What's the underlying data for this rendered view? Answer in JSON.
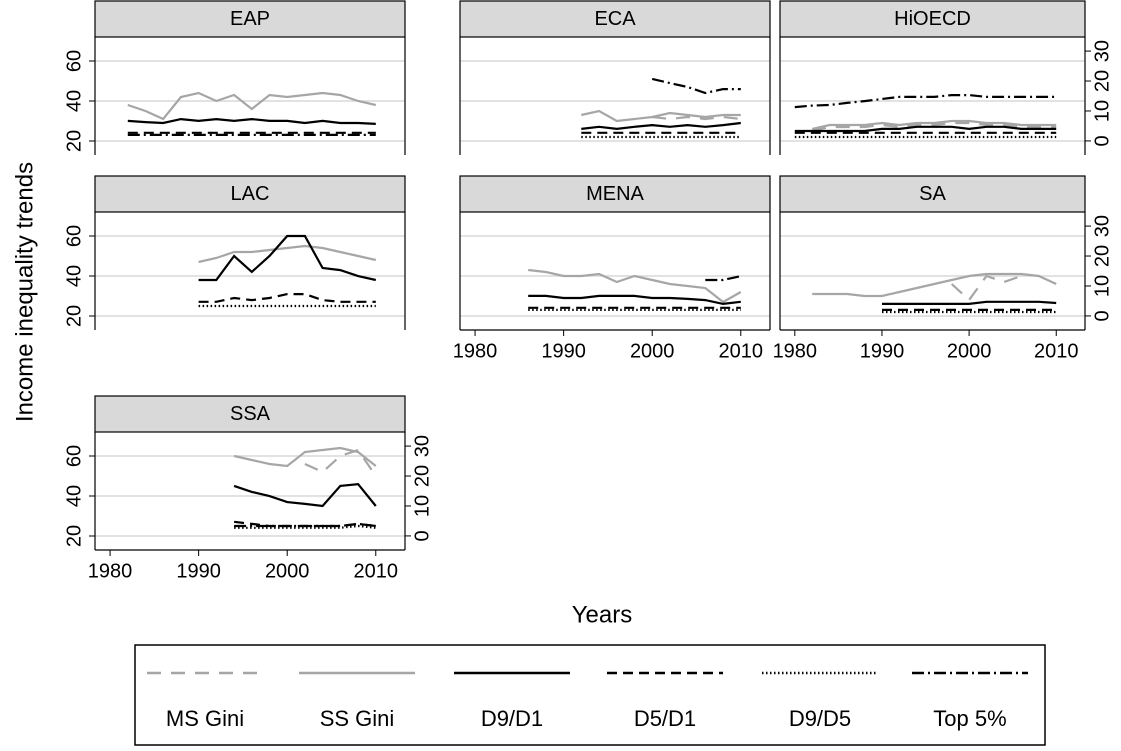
{
  "chart_data": {
    "type": "line",
    "y_label": "Income inequality trends",
    "x_label": "Years",
    "x": [
      1980,
      1982,
      1984,
      1986,
      1988,
      1990,
      1992,
      1994,
      1996,
      1998,
      2000,
      2002,
      2004,
      2006,
      2008,
      2010
    ],
    "xlim": [
      1978.3,
      2013.3
    ],
    "xticks": [
      1980,
      1990,
      2000,
      2010
    ],
    "ylim": [
      13,
      72
    ],
    "yticks": [
      20,
      40,
      60
    ],
    "y2lim": [
      -4.7,
      34.7
    ],
    "y2ticks": [
      0,
      10,
      20,
      30
    ],
    "grid": true,
    "series": [
      {
        "name": "MS Gini",
        "color": "#a6a6a6",
        "dash": "14 10"
      },
      {
        "name": "SS Gini",
        "color": "#a6a6a6",
        "dash": "none"
      },
      {
        "name": "D9/D1",
        "color": "#000000",
        "dash": "none",
        "axis": "y2"
      },
      {
        "name": "D5/D1",
        "color": "#000000",
        "dash": "10 6",
        "axis": "y2"
      },
      {
        "name": "D9/D5",
        "color": "#000000",
        "dash": "1.5 2.5",
        "axis": "y2"
      },
      {
        "name": "Top 5%",
        "color": "#000000",
        "dash": "12 4 2 4",
        "axis": "y2"
      }
    ],
    "facets": [
      {
        "title": "EAP",
        "left_axis": true,
        "right_axis": false,
        "x_axis": false,
        "values": [
          null,
          [
            null,
            38,
            35,
            31,
            42,
            44,
            40,
            43,
            36,
            43,
            42,
            43,
            44,
            43,
            40,
            38
          ],
          [
            null,
            6.7,
            6.3,
            6,
            7.3,
            6.7,
            7.3,
            6.7,
            7.3,
            6.7,
            6.7,
            6,
            6.7,
            6,
            6,
            5.7
          ],
          [
            null,
            2.7,
            2.7,
            2.7,
            2.7,
            2.7,
            2.7,
            2.7,
            2.7,
            2.7,
            2.7,
            2.7,
            2.7,
            2.7,
            2.7,
            2.7
          ],
          null,
          [
            null,
            2,
            2,
            2,
            2,
            2,
            2,
            2,
            2,
            2,
            2,
            2,
            2,
            2,
            2,
            2
          ]
        ]
      },
      {
        "title": "ECA",
        "left_axis": false,
        "right_axis": false,
        "x_axis": false,
        "values": [
          [
            null,
            null,
            null,
            null,
            null,
            null,
            null,
            null,
            null,
            null,
            32,
            31,
            32,
            31,
            32,
            31
          ],
          [
            null,
            null,
            null,
            null,
            null,
            null,
            33,
            35,
            30,
            31,
            32,
            34,
            33,
            32,
            33,
            33
          ],
          [
            null,
            null,
            null,
            null,
            null,
            null,
            4,
            4.7,
            4,
            4.7,
            5.3,
            4.7,
            5.3,
            4.7,
            5.3,
            6
          ],
          [
            null,
            null,
            null,
            null,
            null,
            null,
            2.7,
            2.7,
            2.7,
            2.7,
            2.7,
            2.7,
            2.7,
            2.7,
            2.7,
            2.7
          ],
          [
            null,
            null,
            null,
            null,
            null,
            null,
            1.3,
            1.3,
            1.3,
            1.3,
            1.3,
            1.3,
            1.3,
            1.3,
            1.3,
            1.3
          ],
          [
            null,
            null,
            null,
            null,
            null,
            null,
            null,
            null,
            null,
            null,
            20.7,
            19.3,
            18,
            16,
            17.3,
            17.3
          ]
        ]
      },
      {
        "title": "HiOECD",
        "left_axis": false,
        "right_axis": true,
        "x_axis": false,
        "values": [
          [
            null,
            25,
            27,
            27,
            27,
            28,
            27,
            28,
            28,
            29,
            29,
            28,
            28,
            27,
            27,
            27
          ],
          [
            null,
            26,
            28,
            28,
            28,
            29,
            28,
            29,
            29,
            30,
            30,
            29,
            29,
            28,
            28,
            28
          ],
          [
            3.3,
            3.3,
            3.3,
            3.3,
            3.3,
            4,
            4,
            4.7,
            4.7,
            4.7,
            4,
            4.7,
            4.7,
            4,
            4,
            4
          ],
          [
            2.7,
            2.7,
            2.7,
            2.7,
            2.7,
            2.7,
            2.7,
            2.7,
            2.7,
            2.7,
            2.7,
            2.7,
            2.7,
            2.7,
            2.7,
            2.7
          ],
          [
            1.3,
            1.3,
            1.3,
            1.3,
            1.3,
            1.3,
            1.3,
            1.3,
            1.3,
            1.3,
            1.3,
            1.3,
            1.3,
            1.3,
            1.3,
            1.3
          ],
          [
            11.3,
            11.8,
            12,
            12.7,
            13.3,
            14,
            14.7,
            14.7,
            14.7,
            15.3,
            15.3,
            14.7,
            14.7,
            14.7,
            14.7,
            14.7
          ]
        ]
      },
      {
        "title": "LAC",
        "left_axis": true,
        "right_axis": false,
        "x_axis": false,
        "values": [
          null,
          [
            null,
            null,
            null,
            null,
            null,
            47,
            49,
            52,
            52,
            53,
            54,
            55,
            54,
            52,
            50,
            48
          ],
          [
            null,
            null,
            null,
            null,
            null,
            12,
            12,
            20,
            14.7,
            20,
            26.7,
            26.7,
            16,
            15.3,
            13.3,
            12
          ],
          [
            null,
            null,
            null,
            null,
            null,
            4.7,
            4.7,
            6,
            5.3,
            6,
            7.3,
            7.3,
            5.3,
            4.7,
            4.7,
            4.7
          ],
          [
            null,
            null,
            null,
            null,
            null,
            3.3,
            3.3,
            3.3,
            3.3,
            3.3,
            3.3,
            3.3,
            3.3,
            3.3,
            3.3,
            3.3
          ],
          null
        ]
      },
      {
        "title": "MENA",
        "left_axis": false,
        "right_axis": false,
        "x_axis": true,
        "values": [
          null,
          [
            null,
            null,
            null,
            43,
            42,
            40,
            40,
            41,
            37,
            40,
            38,
            36,
            35,
            34,
            27,
            32
          ],
          [
            null,
            null,
            null,
            6.7,
            6.7,
            6,
            6,
            6.7,
            6.7,
            6.7,
            6,
            6,
            5.7,
            5.3,
            4,
            4.7
          ],
          [
            null,
            null,
            null,
            2.7,
            2.7,
            2.7,
            2.7,
            2.7,
            2.7,
            2.7,
            2.7,
            2.7,
            2.7,
            2.7,
            2.7,
            2.7
          ],
          [
            null,
            null,
            null,
            2,
            2,
            2,
            2,
            2,
            2,
            2,
            2,
            2,
            2,
            2,
            2,
            2
          ],
          [
            null,
            null,
            null,
            null,
            null,
            null,
            null,
            null,
            null,
            null,
            null,
            null,
            null,
            12,
            12,
            13.3
          ]
        ]
      },
      {
        "title": "SA",
        "left_axis": false,
        "right_axis": true,
        "x_axis": true,
        "values": [
          [
            null,
            null,
            null,
            null,
            null,
            null,
            null,
            null,
            null,
            36,
            28,
            40,
            37,
            40,
            null,
            null
          ],
          [
            null,
            31,
            31,
            31,
            30,
            30,
            32,
            34,
            36,
            38,
            40,
            41,
            41,
            41,
            40,
            36
          ],
          [
            null,
            null,
            null,
            null,
            null,
            4,
            4,
            4,
            4,
            4,
            4,
            4.7,
            4.7,
            4.7,
            4.7,
            4.3
          ],
          [
            null,
            null,
            null,
            null,
            null,
            2,
            2,
            2,
            2,
            2,
            2,
            2,
            2,
            2,
            2,
            2
          ],
          [
            null,
            null,
            null,
            null,
            null,
            1.3,
            1.3,
            1.3,
            1.3,
            1.3,
            1.3,
            1.3,
            1.3,
            1.3,
            1.3,
            1.3
          ],
          null
        ]
      },
      {
        "title": "SSA",
        "left_axis": true,
        "right_axis": true,
        "x_axis": true,
        "values": [
          [
            null,
            null,
            null,
            null,
            null,
            null,
            null,
            null,
            null,
            null,
            null,
            56,
            52,
            60,
            63,
            50
          ],
          [
            null,
            null,
            null,
            null,
            null,
            null,
            null,
            60,
            58,
            56,
            55,
            62,
            63,
            64,
            62,
            55
          ],
          [
            null,
            null,
            null,
            null,
            null,
            null,
            null,
            16.7,
            14.7,
            13.3,
            11.3,
            10.7,
            10,
            16.7,
            17.3,
            10
          ],
          [
            null,
            null,
            null,
            null,
            null,
            null,
            null,
            4.7,
            4,
            3.3,
            3.3,
            3.3,
            3.3,
            3.3,
            4,
            3.3
          ],
          [
            null,
            null,
            null,
            null,
            null,
            null,
            null,
            2.7,
            2.7,
            2.7,
            2.7,
            2.7,
            2.7,
            2.7,
            3.3,
            2.7
          ],
          [
            null,
            null,
            null,
            null,
            null,
            null,
            null,
            3.3,
            3.3,
            3.3,
            3.3,
            3.3,
            3.3,
            3.3,
            4,
            3.3
          ]
        ]
      }
    ]
  }
}
